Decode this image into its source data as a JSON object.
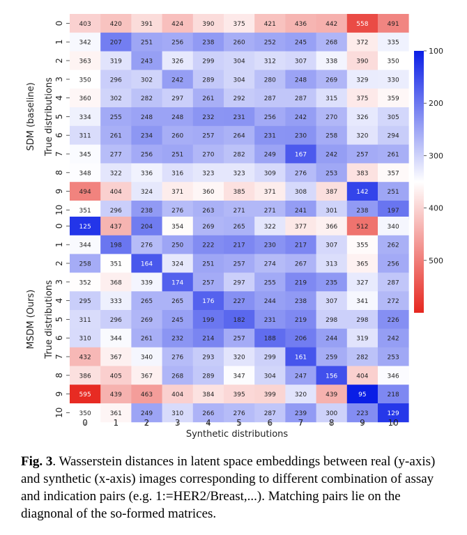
{
  "chart_data": {
    "type": "heatmap",
    "xlabel": "Synthetic distributions",
    "x_categories": [
      "0",
      "1",
      "2",
      "3",
      "4",
      "5",
      "6",
      "7",
      "8",
      "9",
      "10"
    ],
    "y_categories": [
      "0",
      "1",
      "2",
      "3",
      "4",
      "5",
      "6",
      "7",
      "8",
      "9",
      "10"
    ],
    "colormap": "bwr_r",
    "colorbar": {
      "min": 100,
      "max": 600,
      "ticks": [
        100,
        200,
        300,
        400,
        500
      ],
      "low_color": "#0a1ee6",
      "mid_color": "#ffffff",
      "high_color": "#e6271f"
    },
    "panels": [
      {
        "name": "SDM (baseline)",
        "ylabel": "True distributions",
        "matrix": [
          [
            403,
            420,
            391,
            424,
            390,
            375,
            421,
            436,
            442,
            558,
            491
          ],
          [
            342,
            207,
            251,
            256,
            238,
            260,
            252,
            245,
            268,
            372,
            335
          ],
          [
            363,
            319,
            243,
            326,
            299,
            304,
            312,
            307,
            338,
            390,
            350
          ],
          [
            350,
            296,
            302,
            242,
            289,
            304,
            280,
            248,
            269,
            329,
            330
          ],
          [
            360,
            302,
            282,
            297,
            261,
            292,
            287,
            287,
            315,
            375,
            359
          ],
          [
            334,
            255,
            248,
            248,
            232,
            231,
            256,
            242,
            270,
            326,
            305
          ],
          [
            311,
            261,
            234,
            260,
            257,
            264,
            231,
            230,
            258,
            320,
            294
          ],
          [
            345,
            277,
            256,
            251,
            270,
            282,
            249,
            167,
            242,
            257,
            261
          ],
          [
            348,
            322,
            336,
            316,
            323,
            323,
            309,
            276,
            253,
            383,
            357
          ],
          [
            494,
            404,
            324,
            371,
            360,
            385,
            371,
            308,
            387,
            142,
            251
          ],
          [
            351,
            296,
            238,
            276,
            263,
            271,
            271,
            241,
            301,
            238,
            197
          ]
        ]
      },
      {
        "name": "MSDM (Ours)",
        "ylabel": "True distributions",
        "matrix": [
          [
            125,
            437,
            204,
            354,
            269,
            265,
            322,
            377,
            366,
            512,
            340
          ],
          [
            344,
            198,
            276,
            250,
            222,
            217,
            230,
            217,
            307,
            355,
            262
          ],
          [
            258,
            351,
            164,
            324,
            251,
            257,
            274,
            267,
            313,
            365,
            256
          ],
          [
            352,
            368,
            339,
            174,
            257,
            297,
            255,
            219,
            235,
            327,
            287
          ],
          [
            295,
            333,
            265,
            265,
            176,
            227,
            244,
            238,
            307,
            341,
            272
          ],
          [
            311,
            296,
            269,
            245,
            199,
            182,
            231,
            219,
            298,
            298,
            226
          ],
          [
            310,
            344,
            261,
            232,
            214,
            257,
            188,
            206,
            244,
            319,
            242
          ],
          [
            432,
            367,
            340,
            276,
            293,
            320,
            299,
            161,
            259,
            282,
            253
          ],
          [
            386,
            405,
            367,
            268,
            289,
            347,
            304,
            247,
            156,
            404,
            346
          ],
          [
            595,
            439,
            463,
            404,
            384,
            395,
            399,
            320,
            439,
            95,
            218
          ],
          [
            350,
            361,
            249,
            310,
            266,
            276,
            287,
            239,
            300,
            223,
            129
          ]
        ]
      }
    ]
  },
  "caption": {
    "label": "Fig. 3",
    "text": ".  Wasserstein distances in latent space embeddings between real (y-axis) and synthetic (x-axis) images corresponding to different combination of assay and indication pairs (e.g. 1:=HER2/Breast,...). Matching pairs lie on the diagnonal of the so-formed matrices."
  }
}
